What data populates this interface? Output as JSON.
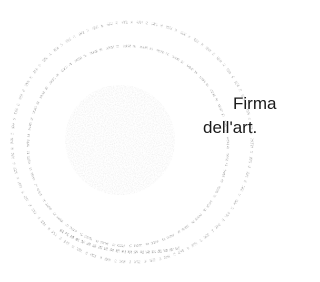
{
  "stamp_text": {
    "line1": "Firma",
    "line2": "dell'art."
  }
}
